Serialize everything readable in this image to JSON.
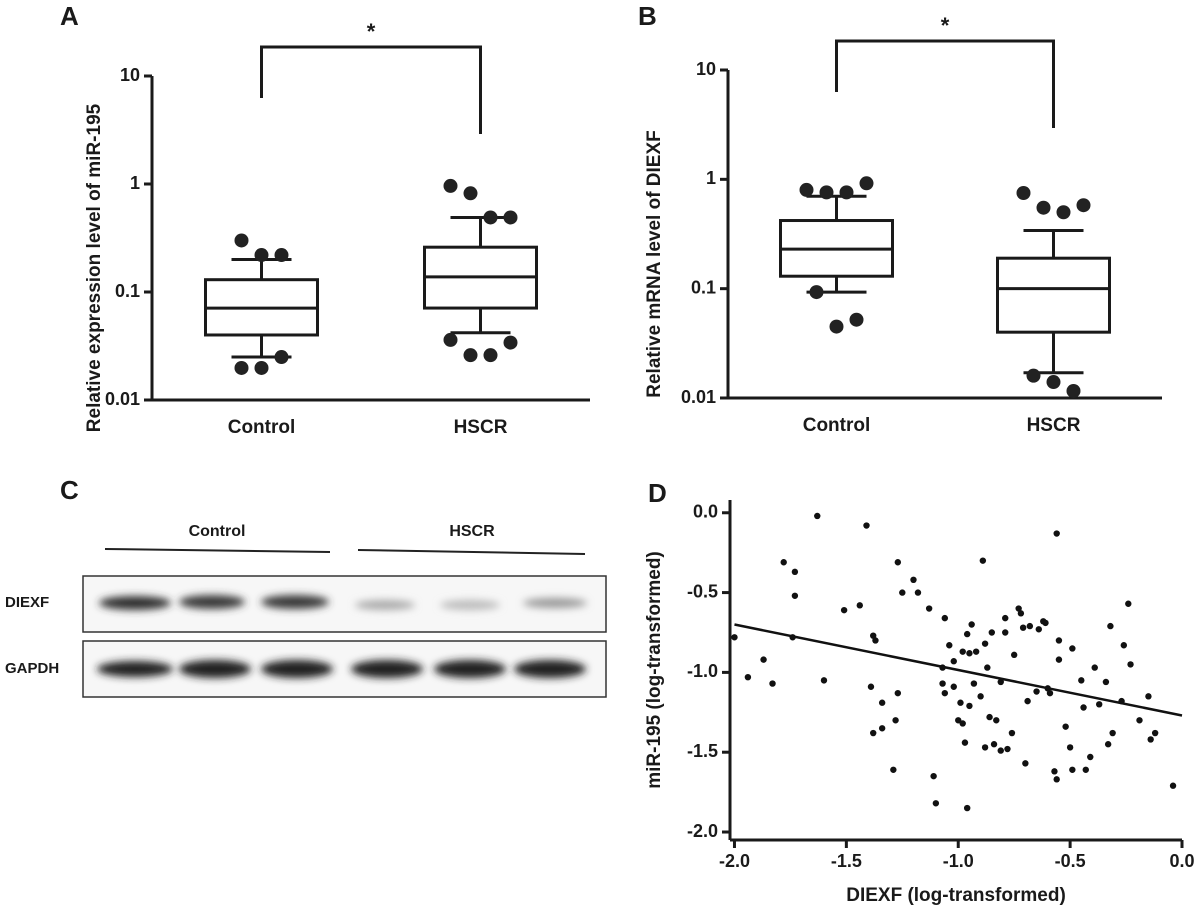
{
  "chart_data": [
    {
      "type": "box",
      "panel": "A",
      "y_label": "Relative expression level of miR-195",
      "annotation": "*",
      "categories": [
        "Control",
        "HSCR"
      ],
      "whislo": [
        0.025,
        0.042
      ],
      "q1": [
        0.04,
        0.071
      ],
      "med": [
        0.071,
        0.138
      ],
      "q3": [
        0.13,
        0.26
      ],
      "whishi": [
        0.2,
        0.49
      ],
      "fliers": [
        [
          0.3,
          0.22,
          0.22,
          0.0198,
          0.0198,
          0.025
        ],
        [
          0.96,
          0.82,
          0.49,
          0.49,
          0.036,
          0.026,
          0.026,
          0.034
        ]
      ],
      "log_y": true,
      "ylim": [
        0.01,
        10
      ],
      "yticks": [
        0.01,
        0.1,
        1,
        10
      ],
      "color": "#222222"
    },
    {
      "type": "box",
      "panel": "B",
      "y_label": "Relative mRNA level of DIEXF",
      "annotation": "*",
      "categories": [
        "Control",
        "HSCR"
      ],
      "whislo": [
        0.093,
        0.017
      ],
      "q1": [
        0.13,
        0.04
      ],
      "med": [
        0.23,
        0.1
      ],
      "q3": [
        0.42,
        0.19
      ],
      "whishi": [
        0.7,
        0.34
      ],
      "fliers": [
        [
          0.8,
          0.76,
          0.76,
          0.92,
          0.093,
          0.045,
          0.052
        ],
        [
          0.75,
          0.55,
          0.5,
          0.58,
          0.016,
          0.014,
          0.0116
        ]
      ],
      "log_y": true,
      "ylim": [
        0.01,
        10
      ],
      "yticks": [
        0.01,
        0.1,
        1,
        10
      ],
      "color": "#222222"
    },
    {
      "type": "scatter",
      "panel": "D",
      "x_label": "DIEXF (log-transformed)",
      "y_label": "miR-195 (log-transformed)",
      "x": [
        -2.0,
        -1.94,
        -1.87,
        -1.83,
        -1.78,
        -1.73,
        -1.73,
        -1.74,
        -1.63,
        -1.6,
        -1.51,
        -1.44,
        -1.41,
        -1.38,
        -1.37,
        -1.39,
        -1.38,
        -1.34,
        -1.34,
        -1.29,
        -1.28,
        -1.27,
        -1.27,
        -1.25,
        -1.2,
        -1.18,
        -1.13,
        -1.11,
        -1.1,
        -1.07,
        -1.07,
        -1.06,
        -1.06,
        -1.04,
        -1.02,
        -1.02,
        -1.0,
        -0.99,
        -0.98,
        -0.98,
        -0.97,
        -0.96,
        -0.96,
        -0.95,
        -0.95,
        -0.94,
        -0.93,
        -0.92,
        -0.9,
        -0.89,
        -0.88,
        -0.88,
        -0.87,
        -0.86,
        -0.85,
        -0.84,
        -0.83,
        -0.81,
        -0.81,
        -0.79,
        -0.79,
        -0.78,
        -0.76,
        -0.75,
        -0.73,
        -0.72,
        -0.71,
        -0.7,
        -0.69,
        -0.68,
        -0.65,
        -0.64,
        -0.62,
        -0.61,
        -0.6,
        -0.59,
        -0.57,
        -0.56,
        -0.56,
        -0.55,
        -0.55,
        -0.52,
        -0.5,
        -0.49,
        -0.49,
        -0.45,
        -0.44,
        -0.43,
        -0.41,
        -0.39,
        -0.37,
        -0.34,
        -0.33,
        -0.32,
        -0.31,
        -0.27,
        -0.26,
        -0.24,
        -0.23,
        -0.19,
        -0.15,
        -0.14,
        -0.12,
        -0.04
      ],
      "values": [
        -0.78,
        -1.03,
        -0.92,
        -1.07,
        -0.31,
        -0.37,
        -0.52,
        -0.78,
        -0.02,
        -1.05,
        -0.61,
        -0.58,
        -0.08,
        -0.77,
        -0.8,
        -1.09,
        -1.38,
        -1.19,
        -1.35,
        -1.61,
        -1.3,
        -1.13,
        -0.31,
        -0.5,
        -0.42,
        -0.5,
        -0.6,
        -1.65,
        -1.82,
        -0.97,
        -1.07,
        -1.13,
        -0.66,
        -0.83,
        -0.93,
        -1.09,
        -1.3,
        -1.19,
        -1.32,
        -0.87,
        -1.44,
        -1.85,
        -0.76,
        -1.21,
        -0.88,
        -0.7,
        -1.07,
        -0.87,
        -1.15,
        -0.3,
        -1.47,
        -0.82,
        -0.97,
        -1.28,
        -0.75,
        -1.45,
        -1.3,
        -1.06,
        -1.49,
        -0.75,
        -0.66,
        -1.48,
        -1.38,
        -0.89,
        -0.6,
        -0.63,
        -0.72,
        -1.57,
        -1.18,
        -0.71,
        -1.12,
        -0.73,
        -0.68,
        -0.69,
        -1.1,
        -1.13,
        -1.62,
        -0.13,
        -1.67,
        -0.8,
        -0.92,
        -1.34,
        -1.47,
        -0.85,
        -1.61,
        -1.05,
        -1.22,
        -1.61,
        -1.53,
        -0.97,
        -1.2,
        -1.06,
        -1.45,
        -0.71,
        -1.38,
        -1.18,
        -0.83,
        -0.57,
        -0.95,
        -1.3,
        -1.15,
        -1.42,
        -1.38,
        -1.71
      ],
      "fit": {
        "x": [
          -2.0,
          0.0
        ],
        "values": [
          -0.7,
          -1.27
        ]
      },
      "xlim": [
        -2.02,
        0.0
      ],
      "ylim": [
        -2.05,
        0.08
      ],
      "xticks": [
        {
          "value": -2,
          "label": "-2.0"
        },
        -1.5,
        {
          "value": -1,
          "label": "-1.0"
        },
        -0.5,
        {
          "value": 0,
          "label": "0.0"
        }
      ],
      "yticks": [
        {
          "value": -2,
          "label": "-2.0"
        },
        -1.5,
        {
          "value": -1,
          "label": "-1.0"
        },
        -0.5,
        {
          "value": 0,
          "label": "0.0"
        }
      ],
      "color": "#111111"
    }
  ],
  "blot": {
    "panel": "C",
    "groups": [
      "Control",
      "HSCR"
    ],
    "rows": [
      "DIEXF",
      "GAPDH"
    ]
  }
}
